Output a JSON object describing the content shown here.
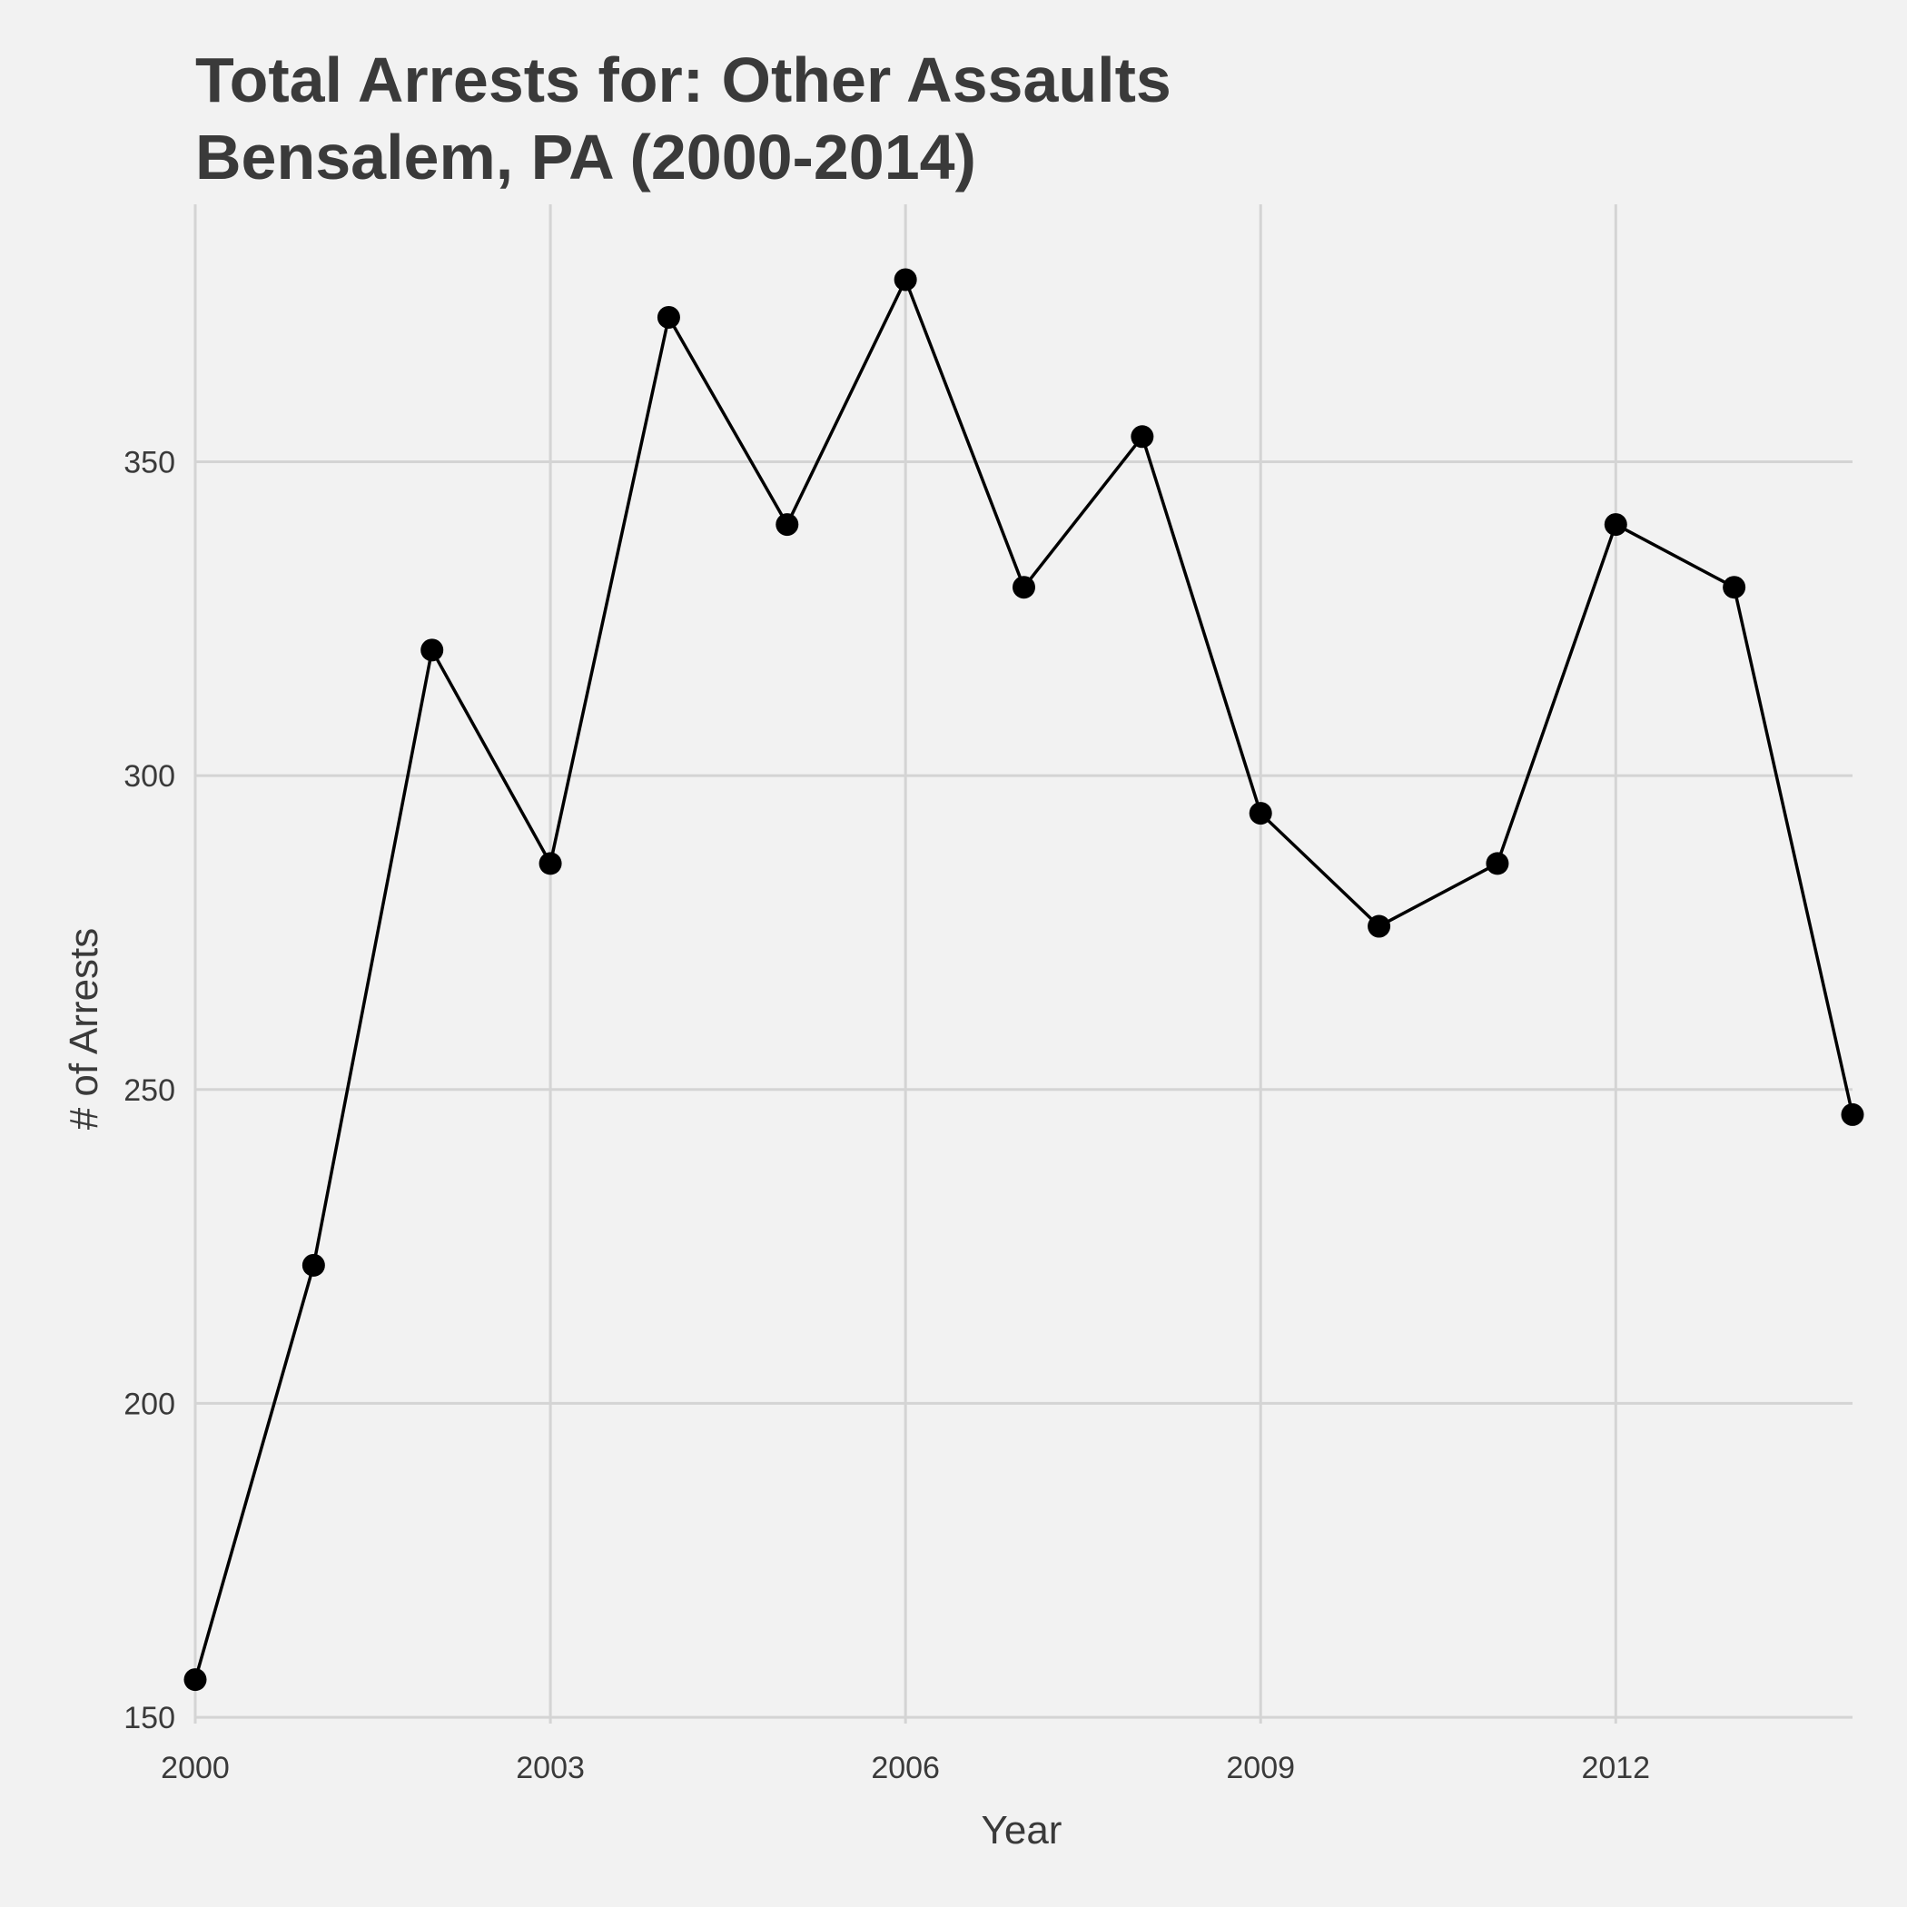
{
  "chart_data": {
    "type": "line",
    "title": "Total Arrests for: Other Assaults",
    "subtitle": "Bensalem, PA (2000-2014)",
    "xlabel": "Year",
    "ylabel": "# of Arrests",
    "x": [
      2000,
      2001,
      2002,
      2003,
      2004,
      2005,
      2006,
      2007,
      2008,
      2009,
      2010,
      2011,
      2012,
      2013,
      2014
    ],
    "series": [
      {
        "values": [
          156,
          222,
          320,
          286,
          373,
          340,
          379,
          330,
          354,
          294,
          276,
          286,
          340,
          330,
          246
        ]
      }
    ],
    "xlim": [
      2000,
      2014
    ],
    "ylim": [
      149,
      391
    ],
    "x_ticks": [
      2000,
      2003,
      2006,
      2009,
      2012
    ],
    "y_ticks": [
      150,
      200,
      250,
      300,
      350
    ],
    "grid": true,
    "legend": "none",
    "line_color": "#000000",
    "point_color": "#000000",
    "background": "#f2f2f2",
    "grid_color": "#d4d4d4"
  }
}
